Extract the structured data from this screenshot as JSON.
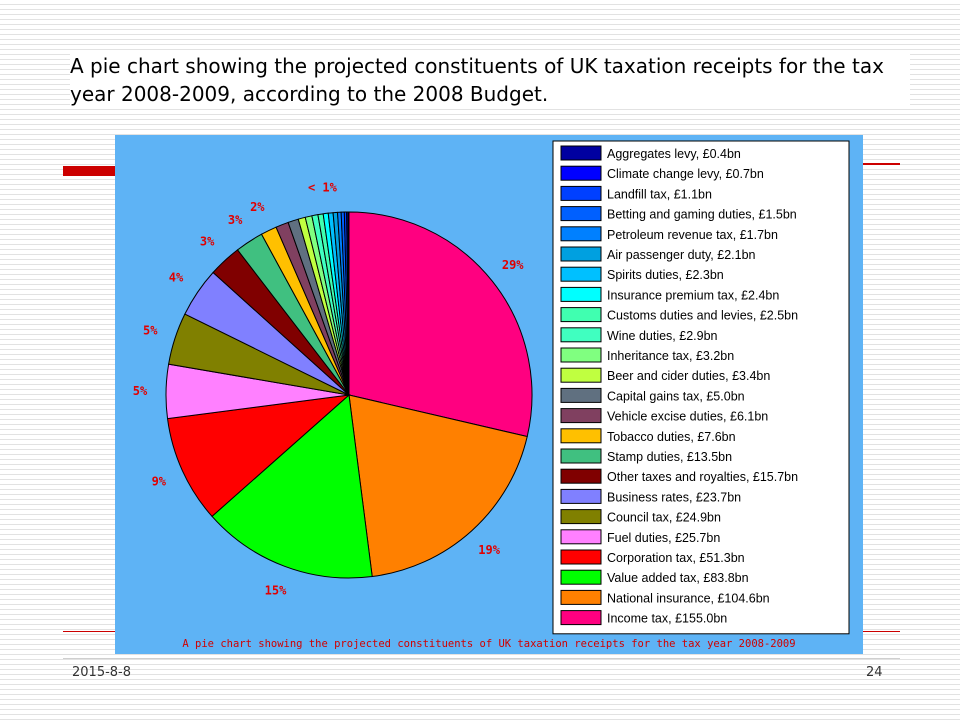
{
  "slide": {
    "title": "A pie chart showing the projected constituents of UK taxation receipts for the tax year 2008-2009, according to the 2008 Budget.",
    "date": "2015-8-8",
    "page_number": "24"
  },
  "chart_data": {
    "type": "pie",
    "caption": "A pie chart showing the projected constituents of UK taxation receipts for the tax year 2008-2009",
    "unit": "£bn",
    "slices": [
      {
        "label": "Income tax, £155.0bn",
        "value": 155.0,
        "color": "#ff0080"
      },
      {
        "label": "National insurance, £104.6bn",
        "value": 104.6,
        "color": "#ff8000"
      },
      {
        "label": "Value added tax, £83.8bn",
        "value": 83.8,
        "color": "#00ff00"
      },
      {
        "label": "Corporation tax, £51.3bn",
        "value": 51.3,
        "color": "#ff0000"
      },
      {
        "label": "Fuel duties, £25.7bn",
        "value": 25.7,
        "color": "#ff80ff"
      },
      {
        "label": "Council tax, £24.9bn",
        "value": 24.9,
        "color": "#808000"
      },
      {
        "label": "Business rates, £23.7bn",
        "value": 23.7,
        "color": "#8080ff"
      },
      {
        "label": "Other taxes and royalties, £15.7bn",
        "value": 15.7,
        "color": "#800000"
      },
      {
        "label": "Stamp duties, £13.5bn",
        "value": 13.5,
        "color": "#40c080"
      },
      {
        "label": "Tobacco duties, £7.6bn",
        "value": 7.6,
        "color": "#ffc000"
      },
      {
        "label": "Vehicle excise duties, £6.1bn",
        "value": 6.1,
        "color": "#804060"
      },
      {
        "label": "Capital gains tax, £5.0bn",
        "value": 5.0,
        "color": "#607080"
      },
      {
        "label": "Beer and cider duties, £3.4bn",
        "value": 3.4,
        "color": "#c0ff40"
      },
      {
        "label": "Inheritance tax, £3.2bn",
        "value": 3.2,
        "color": "#80ff80"
      },
      {
        "label": "Wine duties, £2.9bn",
        "value": 2.9,
        "color": "#40ffc0"
      },
      {
        "label": "Customs duties and levies, £2.5bn",
        "value": 2.5,
        "color": "#40ffb0"
      },
      {
        "label": "Insurance premium tax, £2.4bn",
        "value": 2.4,
        "color": "#00ffff"
      },
      {
        "label": "Spirits duties, £2.3bn",
        "value": 2.3,
        "color": "#00c0ff"
      },
      {
        "label": "Air passenger duty, £2.1bn",
        "value": 2.1,
        "color": "#00a0e0"
      },
      {
        "label": "Petroleum revenue tax, £1.7bn",
        "value": 1.7,
        "color": "#0080ff"
      },
      {
        "label": "Betting and gaming duties, £1.5bn",
        "value": 1.5,
        "color": "#0060ff"
      },
      {
        "label": "Landfill tax, £1.1bn",
        "value": 1.1,
        "color": "#0040ff"
      },
      {
        "label": "Climate change levy, £0.7bn",
        "value": 0.7,
        "color": "#0000ff"
      },
      {
        "label": "Aggregates levy, £0.4bn",
        "value": 0.4,
        "color": "#0000a0"
      }
    ],
    "percent_labels": [
      {
        "text": "29%",
        "slice": 0
      },
      {
        "text": "19%",
        "slice": 1
      },
      {
        "text": "15%",
        "slice": 2
      },
      {
        "text": "9%",
        "slice": 3
      },
      {
        "text": "5%",
        "slice": 4
      },
      {
        "text": "5%",
        "slice": 5
      },
      {
        "text": "4%",
        "slice": 6
      },
      {
        "text": "3%",
        "slice": 7
      },
      {
        "text": "3%",
        "slice": 8
      },
      {
        "text": "2%",
        "slice": 9
      },
      {
        "text": "< 1%",
        "slice": 16
      }
    ],
    "legend_order": "bottom-to-top matches slice order (Income tax at bottom)",
    "legend_placement": "right"
  }
}
